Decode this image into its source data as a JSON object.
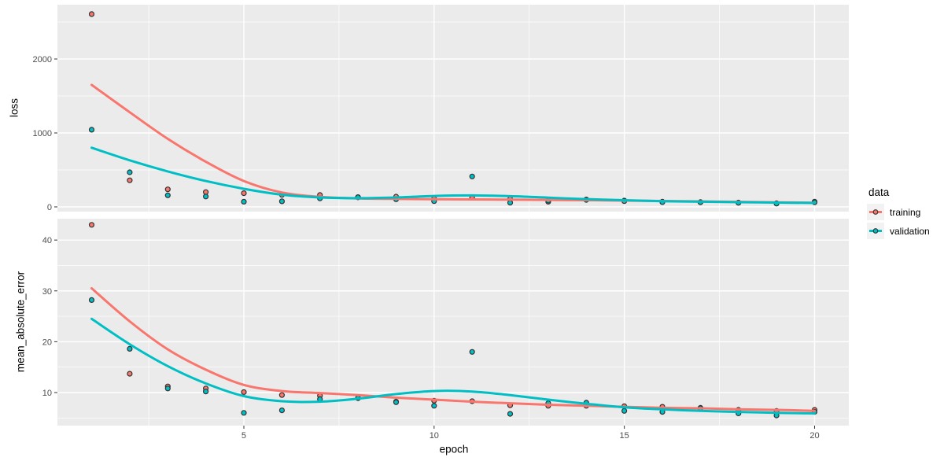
{
  "figure": {
    "panel_background": "#EBEBEB",
    "grid_color": "#FFFFFF",
    "tick_mark_color": "#333333",
    "tick_label_color": "#4D4D4D",
    "point_outline_color": "#333333"
  },
  "chart_data": {
    "type": "scatter",
    "title": "",
    "xlabel": "epoch",
    "x": [
      1,
      2,
      3,
      4,
      5,
      6,
      7,
      8,
      9,
      10,
      11,
      12,
      13,
      14,
      15,
      16,
      17,
      18,
      19,
      20
    ],
    "xticks": [
      5,
      10,
      15,
      20
    ],
    "xminor": [
      2.5,
      7.5,
      12.5,
      17.5
    ],
    "xlim": [
      0.1,
      20.9
    ],
    "grid": true,
    "legend": {
      "title": "data",
      "position": "right",
      "items": [
        {
          "label": "training",
          "color": "#F8766D"
        },
        {
          "label": "validation",
          "color": "#00BFC4"
        }
      ]
    },
    "facets": [
      {
        "ylabel": "loss",
        "yticks": [
          0,
          1000,
          2000
        ],
        "yminor": [
          500,
          1500,
          2500
        ],
        "ylim": [
          -64,
          2734
        ],
        "series": [
          {
            "name": "training",
            "color": "#F8766D",
            "points": [
              2607,
              359,
              237,
              200,
              185,
              163,
              160,
              132,
              138,
              110,
              128,
              106,
              70,
              100,
              85,
              70,
              65,
              58,
              50,
              70
            ],
            "smooth": [
              1650,
              1280,
              920,
              610,
              350,
              195,
              135,
              115,
              108,
              104,
              101,
              98,
              94,
              90,
              85,
              80,
              74,
              68,
              62,
              56
            ]
          },
          {
            "name": "validation",
            "color": "#00BFC4",
            "points": [
              1043,
              468,
              156,
              140,
              70,
              75,
              115,
              130,
              103,
              78,
              412,
              56,
              85,
              95,
              78,
              65,
              63,
              55,
              45,
              62
            ],
            "smooth": [
              800,
              630,
              480,
              350,
              245,
              165,
              128,
              118,
              128,
              148,
              155,
              145,
              125,
              105,
              90,
              78,
              70,
              64,
              58,
              53
            ]
          }
        ]
      },
      {
        "ylabel": "mean_absolute_error",
        "yticks": [
          10,
          20,
          30,
          40
        ],
        "yminor": [
          5,
          15,
          25,
          35
        ],
        "ylim": [
          3.5,
          44.2
        ],
        "series": [
          {
            "name": "training",
            "color": "#F8766D",
            "points": [
              43,
              13.7,
              11.2,
              10.8,
              10.1,
              9.5,
              9.4,
              8.9,
              8.2,
              8.4,
              8.3,
              7.5,
              7.4,
              7.4,
              7.3,
              7.2,
              7.0,
              6.6,
              6.4,
              6.6
            ],
            "smooth": [
              30.5,
              24.0,
              18.5,
              14.5,
              11.5,
              10.3,
              9.9,
              9.5,
              9.0,
              8.6,
              8.2,
              7.9,
              7.6,
              7.4,
              7.2,
              7.0,
              6.9,
              6.7,
              6.6,
              6.4
            ]
          },
          {
            "name": "validation",
            "color": "#00BFC4",
            "points": [
              28.2,
              18.6,
              10.8,
              10.2,
              6.0,
              6.5,
              8.7,
              8.9,
              8.1,
              7.4,
              18.0,
              5.8,
              7.9,
              8.0,
              6.4,
              6.2,
              6.9,
              5.9,
              5.5,
              6.2
            ],
            "smooth": [
              24.5,
              19.5,
              15.2,
              11.8,
              9.3,
              8.3,
              8.2,
              8.8,
              9.7,
              10.3,
              10.2,
              9.5,
              8.6,
              7.8,
              7.1,
              6.7,
              6.4,
              6.2,
              6.0,
              5.9
            ]
          }
        ]
      }
    ]
  }
}
